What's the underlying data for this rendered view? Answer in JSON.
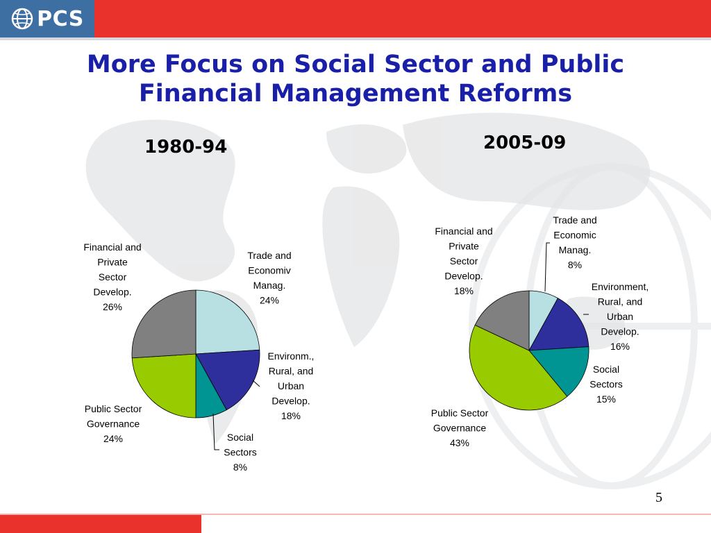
{
  "logo": {
    "text": "PCS"
  },
  "slide": {
    "title_line1": "More Focus on Social Sector and Public",
    "title_line2": "Financial Management Reforms",
    "page_number": "5"
  },
  "colors": {
    "trade": "#b8e0e3",
    "environment": "#2e2f9c",
    "social": "#009593",
    "public": "#99cc00",
    "financial": "#808080",
    "title": "#1a1fa8",
    "brand_red": "#e8322b",
    "brand_blue": "#3d6fa3"
  },
  "chart_data": [
    {
      "type": "pie",
      "title": "1980-94",
      "slices": [
        {
          "key": "trade",
          "label": [
            "Trade and",
            "Economiv",
            "Manag.",
            "24%"
          ],
          "value": 24
        },
        {
          "key": "environment",
          "label": [
            "Environm.,",
            "Rural, and",
            "Urban",
            "Develop.",
            "18%"
          ],
          "value": 18
        },
        {
          "key": "social",
          "label": [
            "Social",
            "Sectors",
            "8%"
          ],
          "value": 8
        },
        {
          "key": "public",
          "label": [
            "Public Sector",
            "Governance",
            "24%"
          ],
          "value": 24
        },
        {
          "key": "financial",
          "label": [
            "Financial and",
            "Private",
            "Sector",
            "Develop.",
            "26%"
          ],
          "value": 26
        }
      ]
    },
    {
      "type": "pie",
      "title": "2005-09",
      "slices": [
        {
          "key": "trade",
          "label": [
            "Trade and",
            "Economic",
            "Manag.",
            "8%"
          ],
          "value": 8
        },
        {
          "key": "environment",
          "label": [
            "Environment,",
            "Rural, and",
            "Urban",
            "Develop.",
            "16%"
          ],
          "value": 16
        },
        {
          "key": "social",
          "label": [
            "Social",
            "Sectors",
            "15%"
          ],
          "value": 15
        },
        {
          "key": "public",
          "label": [
            "Public Sector",
            "Governance",
            "43%"
          ],
          "value": 43
        },
        {
          "key": "financial",
          "label": [
            "Financial and",
            "Private",
            "Sector",
            "Develop.",
            "18%"
          ],
          "value": 18
        }
      ]
    }
  ]
}
